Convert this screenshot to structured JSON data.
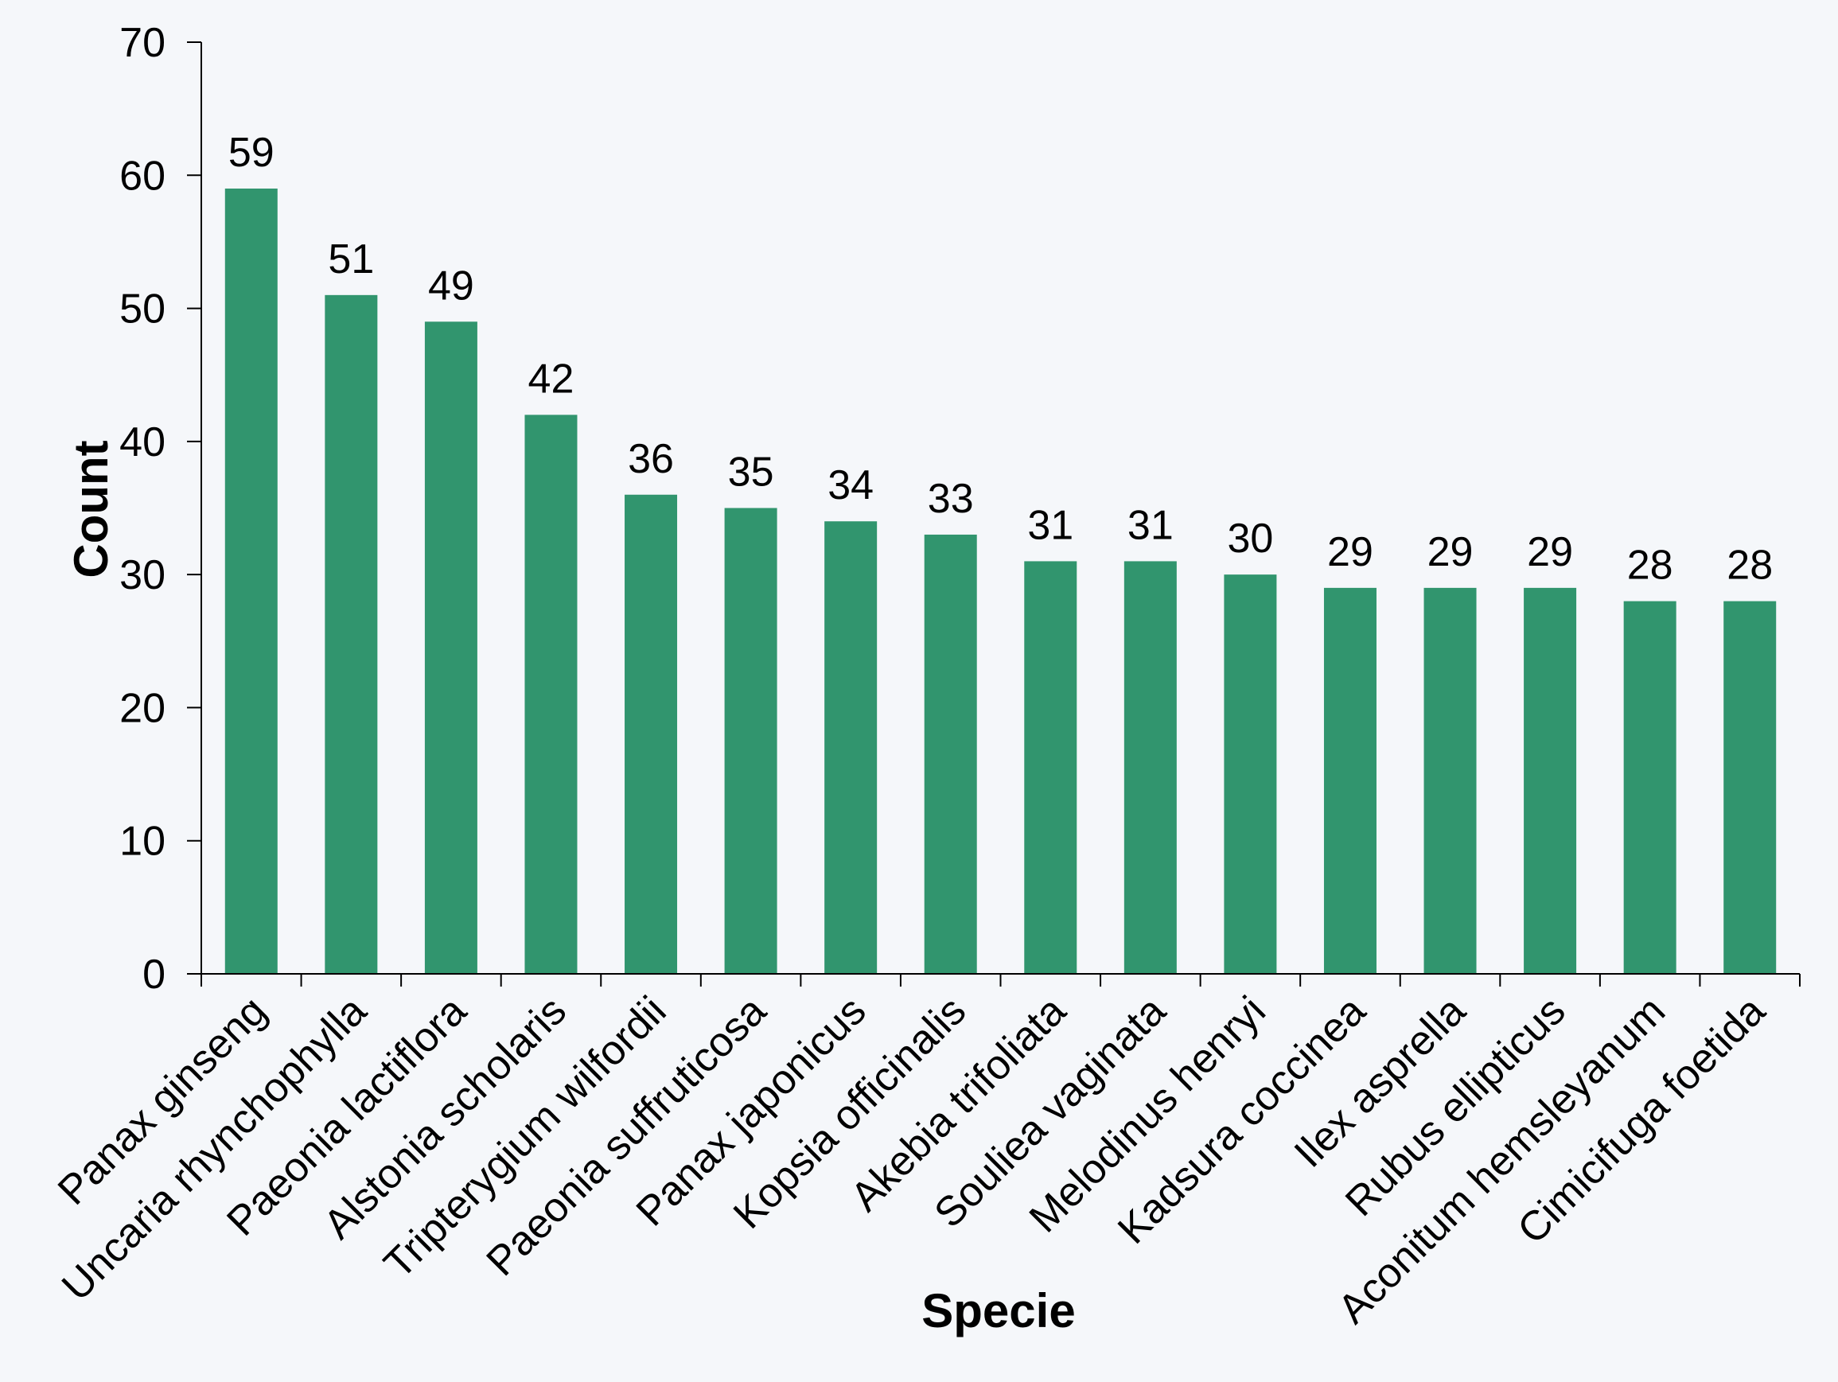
{
  "colors": {
    "bar": "#31956e",
    "background": "#f5f7fa",
    "axis": "#000000"
  },
  "chart_data": {
    "type": "bar",
    "xlabel": "Specie",
    "ylabel": "Count",
    "ylim": [
      0,
      70
    ],
    "yticks": [
      0,
      10,
      20,
      30,
      40,
      50,
      60,
      70
    ],
    "grid": false,
    "legend": "none",
    "data_labels": true,
    "categories": [
      "Panax ginseng",
      "Uncaria rhynchophylla",
      "Paeonia lactiflora",
      "Alstonia scholaris",
      "Tripterygium wilfordii",
      "Paeonia suffruticosa",
      "Panax japonicus",
      "Kopsia officinalis",
      "Akebia trifoliata",
      "Souliea vaginata",
      "Melodinus henryi",
      "Kadsura coccinea",
      "Ilex asprella",
      "Rubus ellipticus",
      "Aconitum hemsleyanum",
      "Cimicifuga foetida"
    ],
    "values": [
      59,
      51,
      49,
      42,
      36,
      35,
      34,
      33,
      31,
      31,
      30,
      29,
      29,
      29,
      28,
      28
    ]
  }
}
